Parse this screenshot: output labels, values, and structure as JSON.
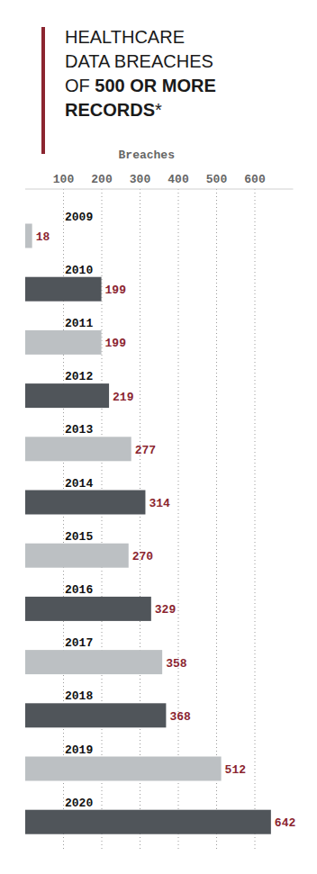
{
  "chart_data": {
    "type": "bar",
    "orientation": "horizontal",
    "title": "HEALTHCARE\nDATA BREACHES\nOF 500 OR MORE\nRECORDS*",
    "x_label": "Breaches",
    "categories": [
      "2009",
      "2010",
      "2011",
      "2012",
      "2013",
      "2014",
      "2015",
      "2016",
      "2017",
      "2018",
      "2019",
      "2020"
    ],
    "values": [
      18,
      199,
      199,
      219,
      277,
      314,
      270,
      329,
      358,
      368,
      512,
      642
    ],
    "colors": [
      "#bcc0c3",
      "#50555a",
      "#bcc0c3",
      "#50555a",
      "#bcc0c3",
      "#50555a",
      "#bcc0c3",
      "#50555a",
      "#bcc0c3",
      "#50555a",
      "#bcc0c3",
      "#50555a"
    ],
    "xlim": [
      0,
      700
    ],
    "xticks": [
      100,
      200,
      300,
      400,
      500,
      600
    ],
    "grid": true,
    "data_labels": true
  }
}
